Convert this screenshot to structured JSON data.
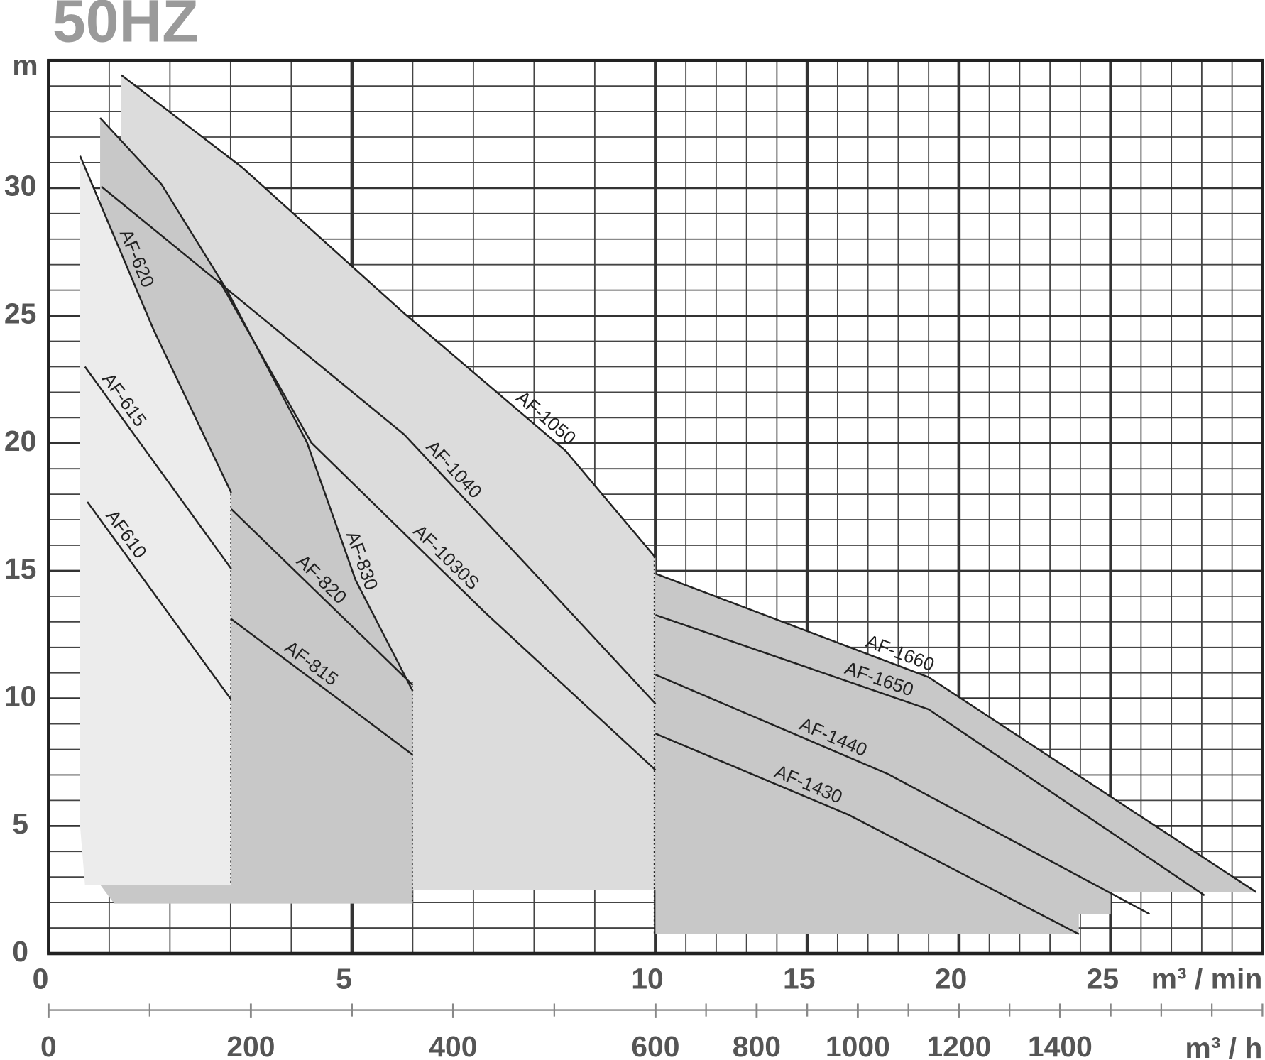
{
  "chart_data": {
    "type": "line",
    "title": "50HZ",
    "y_label": "m",
    "x_label": "m³ / min",
    "x2_label": "m³ / h",
    "xlim": [
      0,
      30
    ],
    "xsplit": 10,
    "xticks": [
      0,
      5,
      10,
      15,
      20,
      25
    ],
    "xminor": 1,
    "x2lim": [
      0,
      1800
    ],
    "x2split": 600,
    "x2ticks": [
      0,
      200,
      400,
      600,
      800,
      1000,
      1200,
      1400
    ],
    "x2minor": 100,
    "ylim": [
      0,
      35
    ],
    "yticks": [
      0,
      5,
      10,
      15,
      20,
      25,
      30
    ],
    "yminor": 1,
    "grid": true,
    "regions": [
      {
        "color": "#dcdcdc",
        "x": [
          1.2,
          3.2,
          5.86,
          8.52,
          10,
          10,
          1.2
        ],
        "y": [
          34.43,
          30.79,
          25.09,
          19.7,
          15.52,
          2.5,
          2.5
        ]
      },
      {
        "color": "#c8c8c8",
        "x": [
          0.85,
          1.86,
          2.93,
          4.26,
          5.06,
          6.0,
          6.0,
          1.08,
          0.85
        ],
        "y": [
          32.75,
          30.15,
          26.04,
          20.02,
          14.63,
          10.29,
          1.96,
          1.96,
          2.7
        ]
      },
      {
        "color": "#ececec",
        "x": [
          0.52,
          1.73,
          3.01,
          3.01,
          0.6,
          0.52
        ],
        "y": [
          31.26,
          24.45,
          18.06,
          2.69,
          2.69,
          5.0
        ]
      },
      {
        "color": "#c8c8c8",
        "x": [
          10,
          19,
          29.79,
          25,
          25,
          23.95,
          23.95,
          10
        ],
        "y": [
          14.89,
          10.83,
          2.41,
          2.41,
          1.55,
          1.55,
          0.76,
          0.76
        ]
      }
    ],
    "series": [
      {
        "name": "AF610",
        "color": "#222222",
        "x": [
          0.64,
          3.01
        ],
        "y": [
          17.7,
          9.95
        ]
      },
      {
        "name": "AF-615",
        "color": "#222222",
        "x": [
          0.6,
          3.01
        ],
        "y": [
          23.0,
          15.08
        ]
      },
      {
        "name": "AF-620",
        "color": "#222222",
        "x": [
          0.52,
          1.73,
          3.01
        ],
        "y": [
          31.26,
          24.45,
          18.06
        ]
      },
      {
        "name": "AF-815",
        "color": "#222222",
        "x": [
          3.01,
          6.0
        ],
        "y": [
          13.11,
          7.79
        ]
      },
      {
        "name": "AF-820",
        "color": "#222222",
        "x": [
          3.01,
          6.0
        ],
        "y": [
          17.42,
          10.52
        ]
      },
      {
        "name": "AF-830",
        "color": "#222222",
        "x": [
          0.85,
          1.86,
          2.93,
          4.26,
          5.06,
          6.0
        ],
        "y": [
          32.75,
          30.15,
          26.04,
          20.02,
          14.63,
          10.29
        ]
      },
      {
        "name": "AF-1030S",
        "color": "#222222",
        "x": [
          2.82,
          4.33,
          7.19,
          10
        ],
        "y": [
          26.35,
          20.02,
          13.37,
          7.19
        ]
      },
      {
        "name": "AF-1040",
        "color": "#222222",
        "x": [
          0.87,
          2.86,
          5.86,
          7.86,
          10
        ],
        "y": [
          30.06,
          26.2,
          20.34,
          15.27,
          9.79
        ]
      },
      {
        "name": "AF-1050",
        "color": "#222222",
        "x": [
          1.2,
          3.2,
          5.86,
          8.52,
          10
        ],
        "y": [
          34.43,
          30.79,
          25.09,
          19.7,
          15.52
        ]
      },
      {
        "name": "AF-1660",
        "color": "#222222",
        "x": [
          10,
          19,
          29.79
        ],
        "y": [
          14.89,
          10.83,
          2.41
        ]
      },
      {
        "name": "AF-1650",
        "color": "#222222",
        "x": [
          10,
          19,
          28.09
        ],
        "y": [
          13.27,
          9.57,
          2.28
        ]
      },
      {
        "name": "AF-1440",
        "color": "#222222",
        "x": [
          10,
          17.67,
          26.28
        ],
        "y": [
          10.93,
          7.03,
          1.55
        ]
      },
      {
        "name": "AF-1430",
        "color": "#222222",
        "x": [
          10,
          16.34,
          23.95
        ],
        "y": [
          8.62,
          5.45,
          0.76
        ]
      }
    ]
  }
}
